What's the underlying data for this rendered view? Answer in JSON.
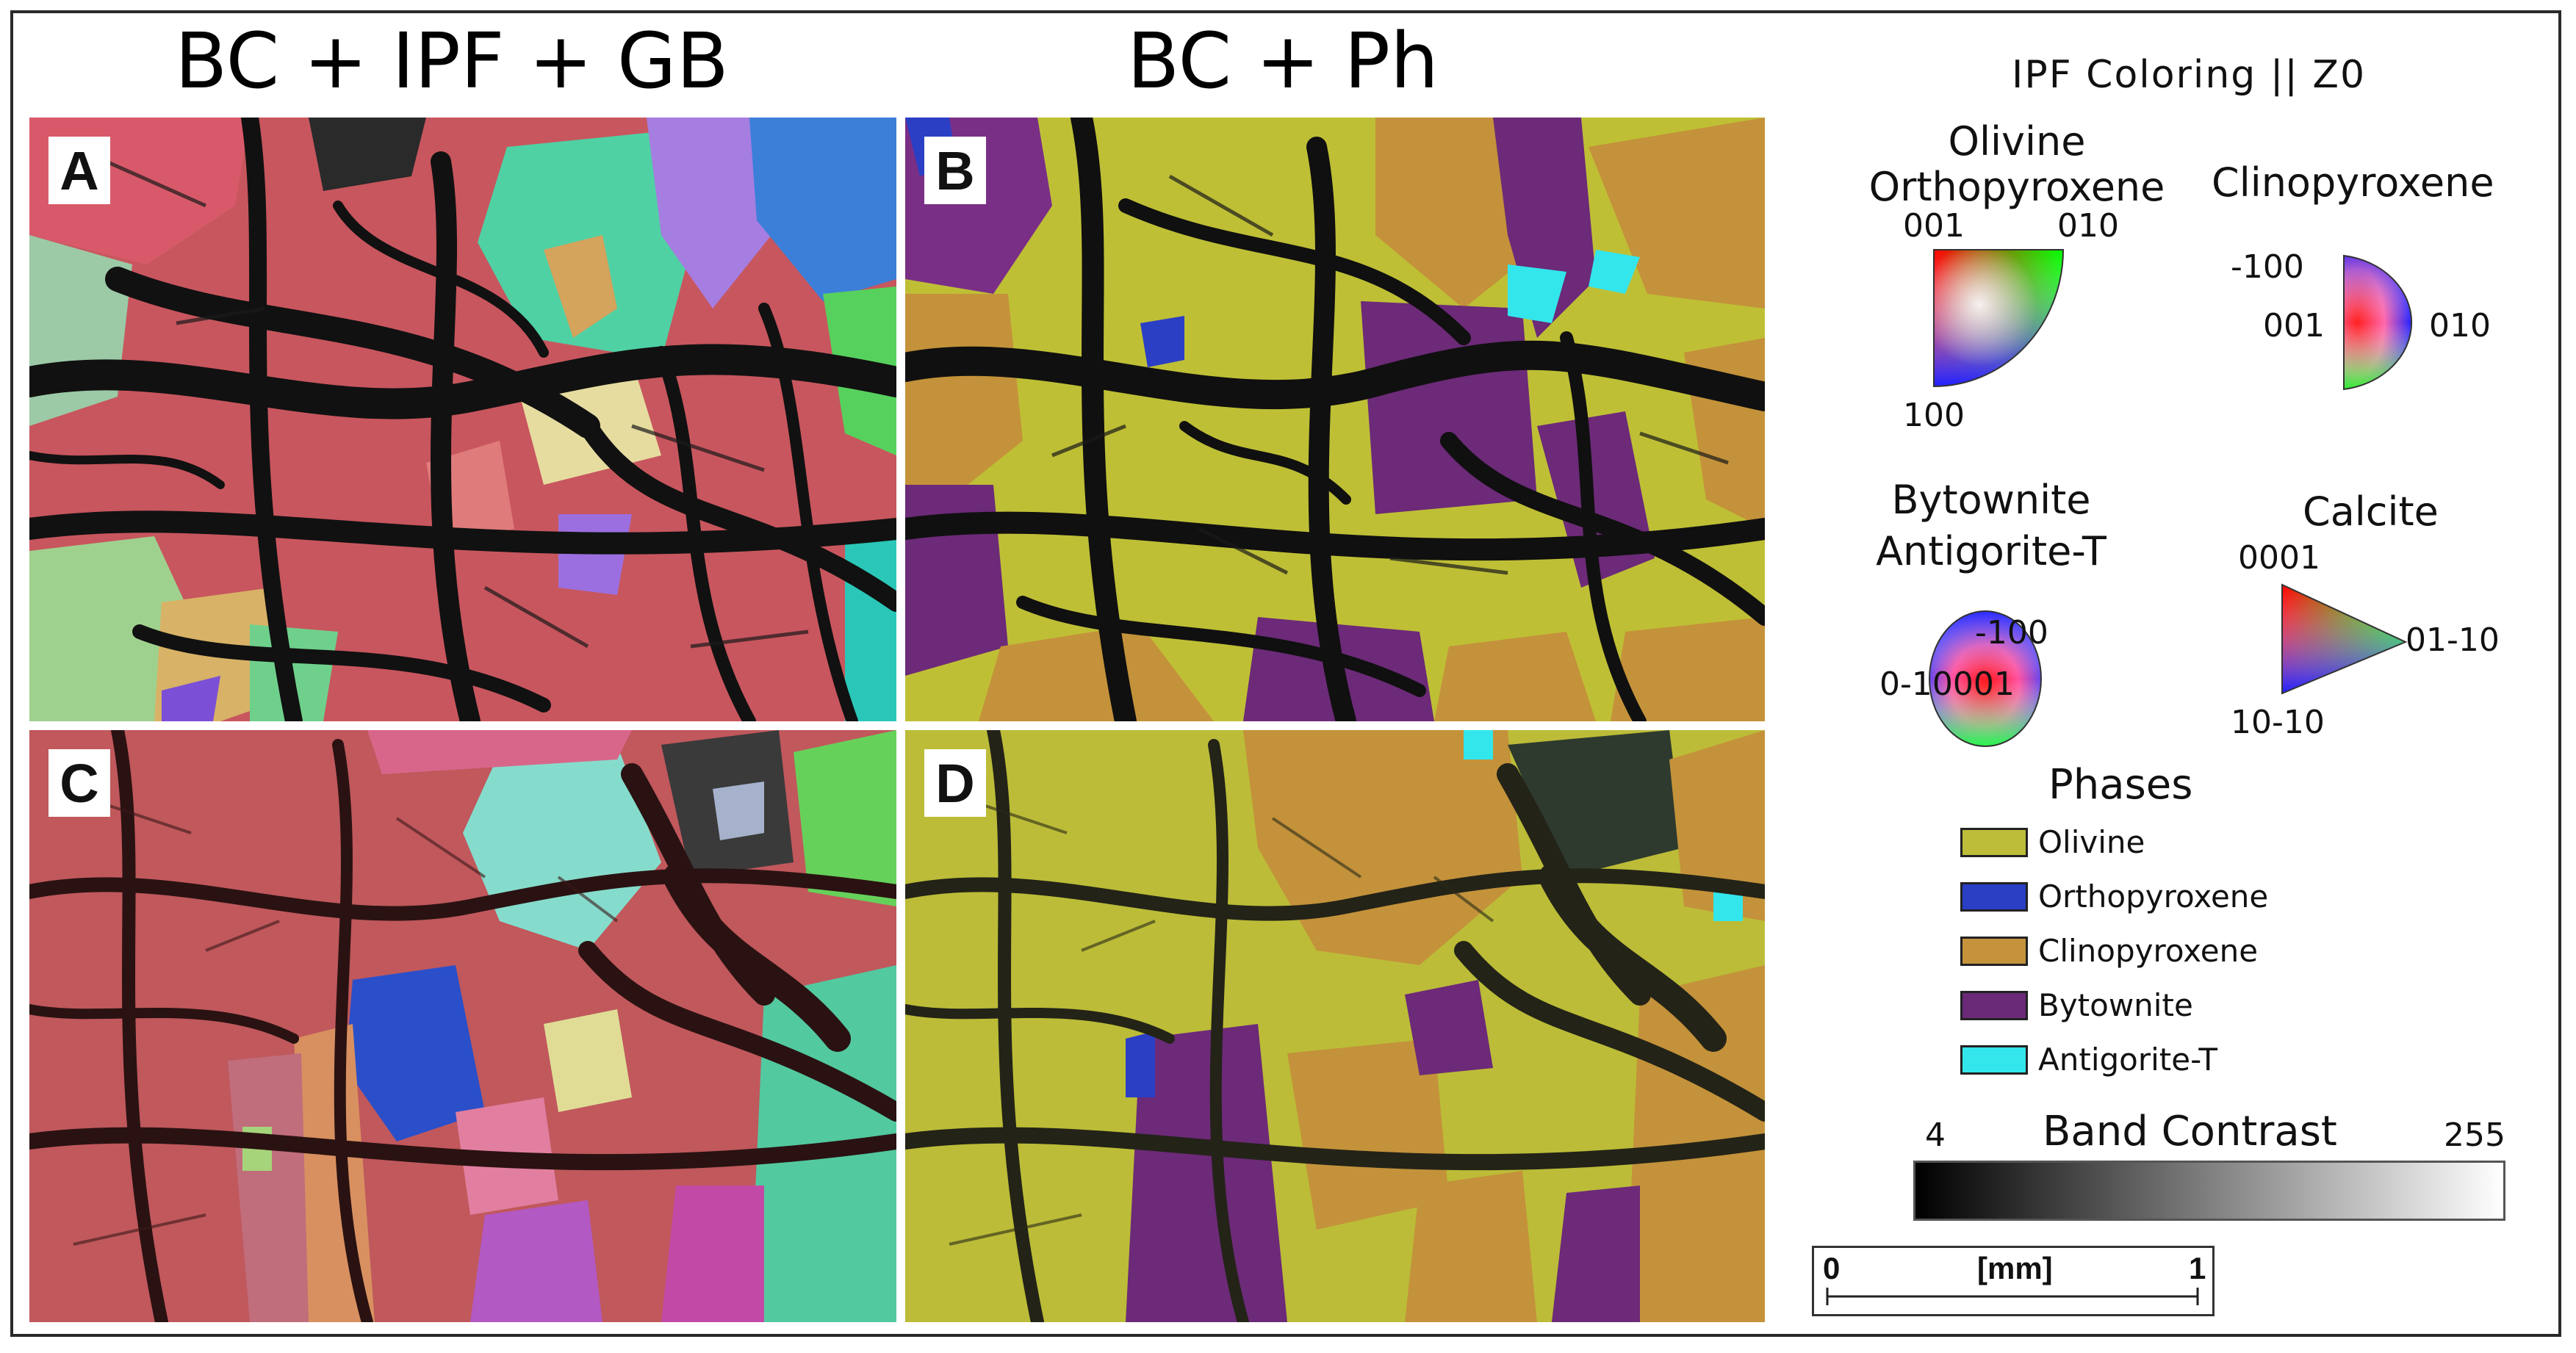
{
  "titles": {
    "left": "BC + IPF + GB",
    "right": "BC + Ph"
  },
  "panels": {
    "a": "A",
    "b": "B",
    "c": "C",
    "d": "D"
  },
  "ipf": {
    "title": "IPF Coloring || Z0",
    "olivine_ortho": {
      "title_line1": "Olivine",
      "title_line2": "Orthopyroxene",
      "top_left": "001",
      "top_right": "010",
      "bottom": "100"
    },
    "clinopyroxene": {
      "title": "Clinopyroxene",
      "top": "-100",
      "left": "001",
      "right": "010"
    },
    "bytownite": {
      "title_line1": "Bytownite",
      "title_line2": "Antigorite-T",
      "top": "-100",
      "center": "0-10001"
    },
    "calcite": {
      "title": "Calcite",
      "top": "0001",
      "right": "01-10",
      "bottom": "10-10"
    }
  },
  "phases": {
    "title": "Phases",
    "items": [
      {
        "name": "Olivine",
        "color": "#bdbd3a"
      },
      {
        "name": "Orthopyroxene",
        "color": "#2b3fc4"
      },
      {
        "name": "Clinopyroxene",
        "color": "#c4933c"
      },
      {
        "name": "Bytownite",
        "color": "#6a2a78"
      },
      {
        "name": "Antigorite-T",
        "color": "#33e6ec"
      }
    ]
  },
  "band_contrast": {
    "title": "Band Contrast",
    "min": "4",
    "max": "255"
  },
  "scale": {
    "start": "0",
    "unit": "[mm]",
    "end": "1"
  }
}
